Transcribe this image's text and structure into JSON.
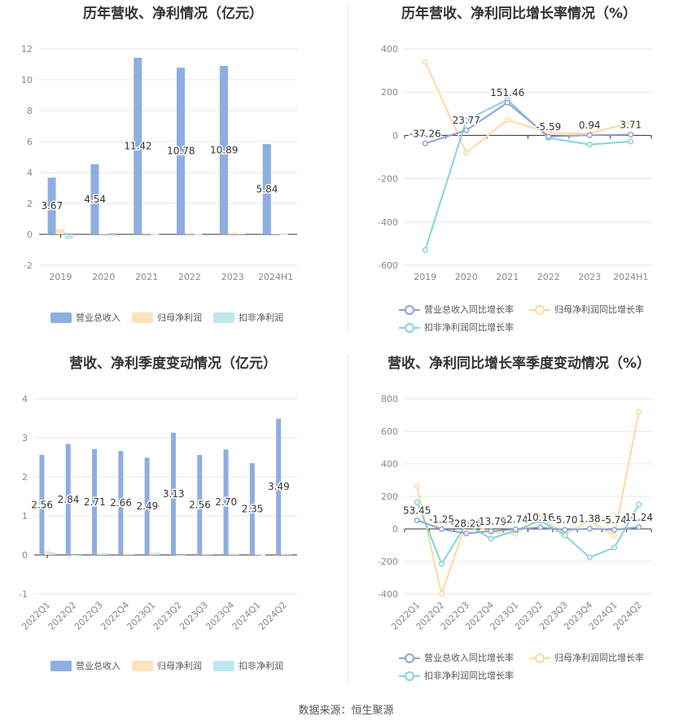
{
  "source_text": "数据来源：恒生聚源",
  "chart_data": [
    {
      "id": "annual-revenue-profit",
      "type": "bar",
      "title": "历年营收、净利情况（亿元）",
      "categories": [
        "2019",
        "2020",
        "2021",
        "2022",
        "2023",
        "2024H1"
      ],
      "ylim": [
        -2,
        12
      ],
      "yticks": [
        -2,
        0,
        2,
        4,
        6,
        8,
        10,
        12
      ],
      "grid": true,
      "legend_position": "bottom",
      "series": [
        {
          "name": "营业总收入",
          "color": "#8eaee0",
          "values": [
            3.67,
            4.54,
            11.42,
            10.78,
            10.89,
            5.84
          ],
          "labels": [
            "3.67",
            "4.54",
            "11.42",
            "10.78",
            "10.89",
            "5.84"
          ]
        },
        {
          "name": "归母净利润",
          "color": "#fbe3bd",
          "values": [
            0.35,
            0.05,
            0.1,
            0.1,
            0.12,
            0.06
          ]
        },
        {
          "name": "扣非净利润",
          "color": "#bfe8ec",
          "values": [
            -0.3,
            -0.1,
            0.03,
            0.03,
            0.05,
            0.02
          ]
        }
      ]
    },
    {
      "id": "annual-growth",
      "type": "line",
      "title": "历年营收、净利同比增长率情况（%）",
      "categories": [
        "2019",
        "2020",
        "2021",
        "2022",
        "2023",
        "2024H1"
      ],
      "ylim": [
        -600,
        400
      ],
      "yticks": [
        -600,
        -400,
        -200,
        0,
        200,
        400
      ],
      "grid": true,
      "legend_position": "bottom",
      "series": [
        {
          "name": "营业总收入同比增长率",
          "color": "#8ea3d3",
          "values": [
            -37.26,
            23.77,
            151.46,
            -5.59,
            0.94,
            3.71
          ],
          "labels": [
            "-37.26",
            "23.77",
            "151.46",
            "-5.59",
            "0.94",
            "3.71"
          ]
        },
        {
          "name": "归母净利润同比增长率",
          "color": "#fcd9a0",
          "values": [
            340,
            -80,
            72,
            12,
            8,
            60
          ]
        },
        {
          "name": "扣非净利润同比增长率",
          "color": "#85d3da",
          "values": [
            -530,
            70,
            165,
            -12,
            -42,
            -28
          ]
        }
      ]
    },
    {
      "id": "quarterly-revenue-profit",
      "type": "bar",
      "title": "营收、净利季度变动情况（亿元）",
      "categories": [
        "2022Q1",
        "2022Q2",
        "2022Q3",
        "2022Q4",
        "2023Q1",
        "2023Q2",
        "2023Q3",
        "2023Q4",
        "2024Q1",
        "2024Q2"
      ],
      "ylim": [
        -1,
        4
      ],
      "yticks": [
        -1,
        0,
        1,
        2,
        3,
        4
      ],
      "grid": true,
      "legend_position": "bottom",
      "series": [
        {
          "name": "营业总收入",
          "color": "#8eaee0",
          "values": [
            2.56,
            2.84,
            2.71,
            2.66,
            2.49,
            3.13,
            2.56,
            2.7,
            2.35,
            3.49
          ],
          "labels": [
            "2.56",
            "2.84",
            "2.71",
            "2.66",
            "2.49",
            "3.13",
            "2.56",
            "2.70",
            "2.35",
            "3.49"
          ]
        },
        {
          "name": "归母净利润",
          "color": "#fbe3bd",
          "values": [
            0.1,
            -0.02,
            0.05,
            0.04,
            0.06,
            -0.02,
            0.04,
            0.05,
            0.02,
            0.03
          ]
        },
        {
          "name": "扣非净利润",
          "color": "#bfe8ec",
          "values": [
            0.07,
            -0.04,
            0.05,
            0.02,
            0.06,
            -0.03,
            0.03,
            0.02,
            0.01,
            0.02
          ]
        }
      ]
    },
    {
      "id": "quarterly-growth",
      "type": "line",
      "title": "营收、净利同比增长率季度变动情况（%）",
      "categories": [
        "2022Q1",
        "2022Q2",
        "2022Q3",
        "2022Q4",
        "2023Q1",
        "2023Q2",
        "2023Q3",
        "2023Q4",
        "2024Q1",
        "2024Q2"
      ],
      "ylim": [
        -400,
        800
      ],
      "yticks": [
        -400,
        -200,
        0,
        200,
        400,
        600,
        800
      ],
      "grid": true,
      "legend_position": "bottom",
      "series": [
        {
          "name": "营业总收入同比增长率",
          "color": "#8ea3d3",
          "values": [
            53.45,
            -1.25,
            -28.26,
            -13.79,
            -2.74,
            10.16,
            -5.7,
            1.38,
            -5.74,
            11.24
          ],
          "labels": [
            "53.45",
            "-1.25",
            "-28.26",
            "-13.79",
            "-2.74",
            "10.16",
            "-5.70",
            "1.38",
            "-5.74",
            "11.24"
          ]
        },
        {
          "name": "归母净利润同比增长率",
          "color": "#fcd9a0",
          "values": [
            265,
            -400,
            40,
            -20,
            -30,
            70,
            -30,
            50,
            -40,
            720
          ]
        },
        {
          "name": "扣非净利润同比增长率",
          "color": "#85d3da",
          "values": [
            165,
            -215,
            30,
            -60,
            -10,
            50,
            -40,
            -175,
            -115,
            150
          ]
        }
      ]
    }
  ]
}
